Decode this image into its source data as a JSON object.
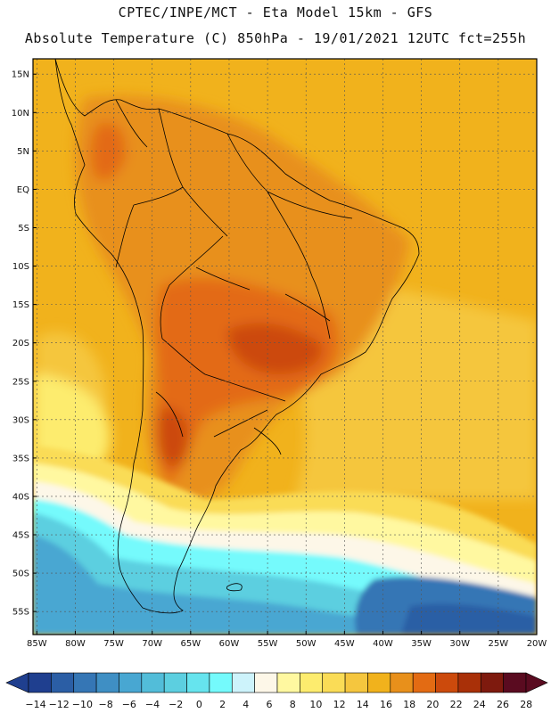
{
  "title": {
    "line1": "CPTEC/INPE/MCT -  Eta Model 15km - GFS",
    "line2": "Absolute Temperature (C) 850hPa - 19/01/2021 12UTC fct=255h"
  },
  "map": {
    "lon_range": [
      -85.5,
      -20
    ],
    "lat_range": [
      -58,
      17
    ],
    "lat_labels": [
      "15N",
      "10N",
      "5N",
      "EQ",
      "5S",
      "10S",
      "15S",
      "20S",
      "25S",
      "30S",
      "35S",
      "40S",
      "45S",
      "50S",
      "55S"
    ],
    "lat_values": [
      15,
      10,
      5,
      0,
      -5,
      -10,
      -15,
      -20,
      -25,
      -30,
      -35,
      -40,
      -45,
      -50,
      -55
    ],
    "lon_labels": [
      "85W",
      "80W",
      "75W",
      "70W",
      "65W",
      "60W",
      "55W",
      "50W",
      "45W",
      "40W",
      "35W",
      "30W",
      "25W",
      "20W"
    ],
    "lon_values": [
      -85,
      -80,
      -75,
      -70,
      -65,
      -60,
      -55,
      -50,
      -45,
      -40,
      -35,
      -30,
      -25,
      -20
    ]
  },
  "colorbar": {
    "unit": "C",
    "labels": [
      "-14",
      "-12",
      "-10",
      "-8",
      "-6",
      "-4",
      "-2",
      "0",
      "2",
      "4",
      "6",
      "8",
      "10",
      "12",
      "14",
      "16",
      "18",
      "20",
      "22",
      "24",
      "26",
      "28"
    ],
    "colors": [
      "#1f3f8f",
      "#2b5ea5",
      "#3576b5",
      "#3f8fc4",
      "#48a7d2",
      "#52bdd9",
      "#5ccfe0",
      "#66e4ee",
      "#74fafc",
      "#cdf3fb",
      "#fdf7e8",
      "#fff8a0",
      "#fdec6e",
      "#fadc56",
      "#f5c63e",
      "#f1b21c",
      "#e8901b",
      "#e36b13",
      "#cc4a0c",
      "#a93008",
      "#7e1a0e",
      "#5a0b20"
    ]
  }
}
